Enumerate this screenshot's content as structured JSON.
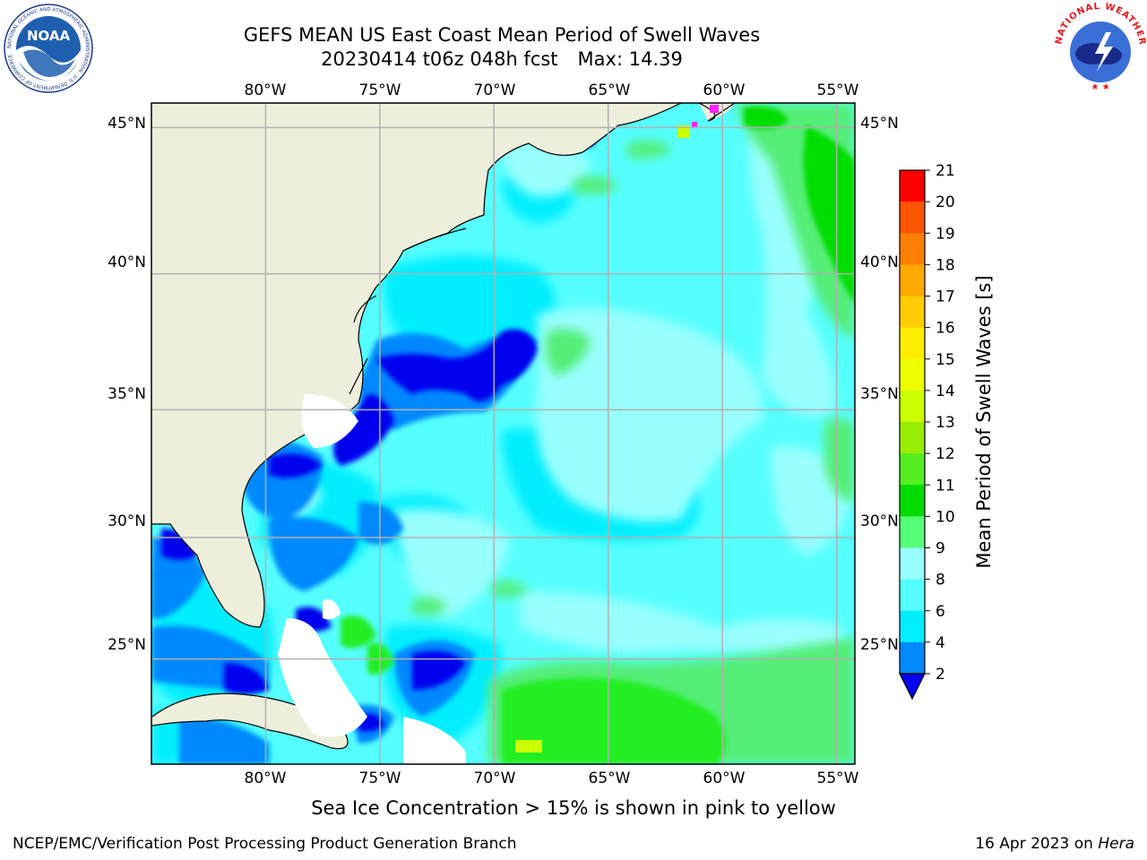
{
  "title": {
    "line1": "GEFS MEAN US East Coast Mean Period of Swell Waves",
    "run": "20230414 t06z 048h fcst",
    "max": "Max: 14.39"
  },
  "logos": {
    "left": "noaa-logo",
    "left_text": "NOAA",
    "left_ring_text": "NATIONAL OCEANIC AND ATMOSPHERIC ADMINISTRATION · U.S. DEPARTMENT OF COMMERCE",
    "right": "nws-logo",
    "right_ring_text": "NATIONAL WEATHER SERVICE"
  },
  "map": {
    "lon_labels": [
      "80°W",
      "75°W",
      "70°W",
      "65°W",
      "60°W",
      "55°W"
    ],
    "lat_labels": [
      "45°N",
      "40°N",
      "35°N",
      "30°N",
      "25°N"
    ],
    "lon_values": [
      -80,
      -75,
      -70,
      -65,
      -60,
      -55
    ],
    "lat_values": [
      45,
      40,
      35,
      30,
      25
    ],
    "extent": {
      "lon": [
        -85,
        -54.2
      ],
      "lat": [
        20.5,
        45.8
      ]
    },
    "colors": {
      "land": "#eeeedc",
      "grid": "#b0b0b0",
      "coast": "#000000"
    }
  },
  "colorbar": {
    "title": "Mean Period of Swell Waves [s]",
    "labels": [
      "21",
      "20",
      "19",
      "18",
      "17",
      "16",
      "15",
      "14",
      "13",
      "12",
      "11",
      "10",
      "9",
      "8",
      "6",
      "4",
      "2"
    ],
    "colors": [
      "#ff0000",
      "#ff2a00",
      "#ff5500",
      "#ff7f00",
      "#ffaa00",
      "#ffcc00",
      "#ffee00",
      "#eeff00",
      "#ccff00",
      "#99ee00",
      "#55ee22",
      "#00dd00",
      "#55ff77",
      "#99ffff",
      "#55ffff",
      "#00eeff",
      "#0088ff",
      "#0000ee"
    ],
    "under_color": "#0000ee"
  },
  "sea_ice_note": "Sea Ice Concentration > 15% is shown in pink to yellow",
  "footer": {
    "left": "NCEP/EMC/Verification Post Processing Product Generation Branch",
    "date": "16 Apr 2023 on",
    "machine": "Hera"
  }
}
